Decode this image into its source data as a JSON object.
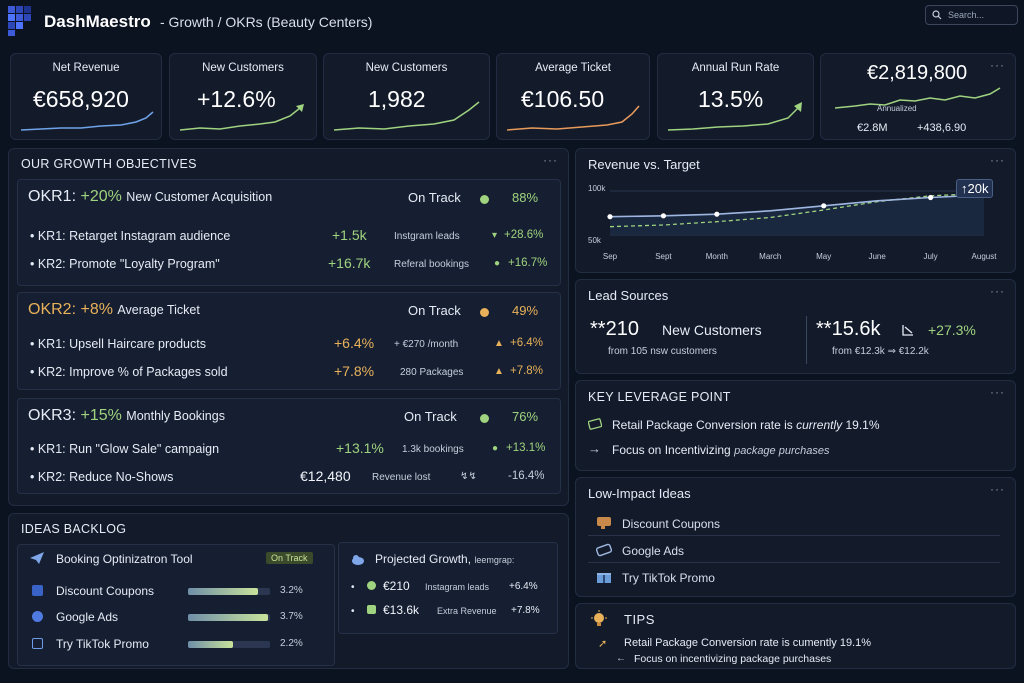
{
  "header": {
    "brand": "DashMaestro",
    "breadcrumb": "- Growth / OKRs (Beauty Centers)",
    "search_placeholder": "Search..."
  },
  "kpis": [
    {
      "title": "Net Revenue",
      "value": "€658,920"
    },
    {
      "title": "New Customers",
      "value": "+12.6%"
    },
    {
      "title": "New Customers",
      "value": "1,982"
    },
    {
      "title": "Average Ticket",
      "value": "€106.50"
    },
    {
      "title": "Annual Run Rate",
      "value": "13.5%"
    }
  ],
  "annual": {
    "value": "€2,819,800",
    "label": "Annualized",
    "left": "€2.8M",
    "right": "+438,6.90"
  },
  "objectives": {
    "title": "OUR GROWTH OBJECTIVES",
    "okrs": [
      {
        "name": "OKR1:",
        "pct": "+20%",
        "desc": "New Customer Acquisition",
        "status": "On Track",
        "progress": "88%",
        "color": "#9fd37f",
        "krs": [
          {
            "label": "• KR1: Retarget Instagram audience",
            "value": "+1.5k",
            "meta": "Instgram leads",
            "icon": "▾",
            "change": "+28.6%"
          },
          {
            "label": "• KR2: Promote \"Loyalty Program\"",
            "value": "+16.7k",
            "meta": "Referal bookings",
            "icon": "●",
            "change": "+16.7%"
          }
        ]
      },
      {
        "name": "OKR2:",
        "pct": "+8%",
        "desc": "Average Ticket",
        "status": "On Track",
        "progress": "49%",
        "color": "#e8b15a",
        "krs": [
          {
            "label": "• KR1: Upsell Haircare products",
            "value": "+6.4%",
            "meta": "+ €270 /month",
            "icon": "▲",
            "change": "+6.4%"
          },
          {
            "label": "• KR2: Improve % of Packages sold",
            "value": "+7.8%",
            "meta": "280 Packages",
            "icon": "▲",
            "change": "+7.8%"
          }
        ]
      },
      {
        "name": "OKR3:",
        "pct": "+15%",
        "desc": "Monthly Bookings",
        "status": "On Track",
        "progress": "76%",
        "color": "#9fd37f",
        "krs": [
          {
            "label": "• KR1: Run \"Glow Sale\" campaign",
            "value": "+13.1%",
            "meta": "1.3k bookings",
            "icon": "●",
            "change": "+13.1%"
          },
          {
            "label": "• KR2: Reduce No-Shows",
            "value": "€12,480",
            "meta": "Revenue lost",
            "icon": "↯↯",
            "change": "-16.4%"
          }
        ]
      }
    ]
  },
  "backlog": {
    "title": "IDEAS BACKLOG",
    "tool": "Booking Optinizatron Tool",
    "tool_badge": "On Track",
    "items": [
      {
        "label": "Discount Coupons",
        "pct": "3.2%",
        "fill": 0.85
      },
      {
        "label": "Google Ads",
        "pct": "3.7%",
        "fill": 0.97
      },
      {
        "label": "Try TikTok Promo",
        "pct": "2.2%",
        "fill": 0.55
      }
    ],
    "projected_title": "Projected Growth,",
    "projected_suffix": "leemgrap:",
    "projected": [
      {
        "value": "€210",
        "meta": "Instagram leads",
        "change": "+6.4%"
      },
      {
        "value": "€13.6k",
        "meta": "Extra Revenue",
        "change": "+7.8%"
      }
    ]
  },
  "revenue_chart": {
    "title": "Revenue vs. Target",
    "badge": "↑20k"
  },
  "chart_data": {
    "type": "line",
    "title": "Revenue vs. Target",
    "categories": [
      "Sep",
      "Sept",
      "Month",
      "March",
      "May",
      "June",
      "July",
      "August"
    ],
    "y_ticks": [
      "100k",
      "50k"
    ],
    "ylim": [
      50,
      110
    ],
    "series": [
      {
        "name": "Revenue",
        "values": [
          72,
          73,
          75,
          79,
          85,
          91,
          95,
          98
        ]
      },
      {
        "name": "Target",
        "values": [
          60,
          62,
          66,
          71,
          80,
          90,
          97,
          100
        ]
      }
    ]
  },
  "lead_sources": {
    "title": "Lead Sources",
    "left_value": "**210",
    "left_label": "New Customers",
    "left_sub": "from 105 nsw customers",
    "right_value": "**15.6k",
    "right_change": "+27.3%",
    "right_sub": "from €12.3k ⇒ €12.2k"
  },
  "leverage": {
    "title": "KEY LEVERAGE POINT",
    "line1_a": "Retail Package Conversion rate is",
    "line1_b": "currently",
    "line1_c": "19.1%",
    "line2_a": "Focus on Incentivizing",
    "line2_b": "package purchases"
  },
  "low_impact": {
    "title": "Low-Impact Ideas",
    "items": [
      "Discount Coupons",
      "Google Ads",
      "Try TikTok Promo"
    ]
  },
  "tips": {
    "title": "TIPS",
    "line1": "Retail Package Conversion rate is cumently 19.1%",
    "line2": "Focus on incentivizing package purchases"
  },
  "colors": {
    "accent_green": "#9fd37f",
    "accent_amber": "#e8b15a",
    "background": "#0b1220"
  }
}
